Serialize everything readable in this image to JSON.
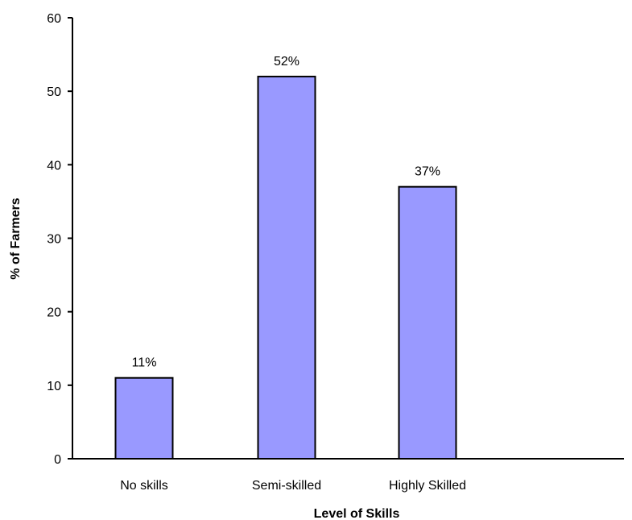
{
  "chart_data": {
    "type": "bar",
    "categories": [
      "No skills",
      "Semi-skilled",
      "Highly Skilled"
    ],
    "values": [
      11,
      52,
      37
    ],
    "data_labels": [
      "11%",
      "52%",
      "37%"
    ],
    "title": "",
    "xlabel": "Level of Skills",
    "ylabel": "% of Farmers",
    "ylim": [
      0,
      60
    ],
    "yticks": [
      0,
      10,
      20,
      30,
      40,
      50,
      60
    ],
    "grid": false,
    "legend": "none",
    "bar_color": "#9999ff",
    "bar_edge_color": "#000000"
  }
}
